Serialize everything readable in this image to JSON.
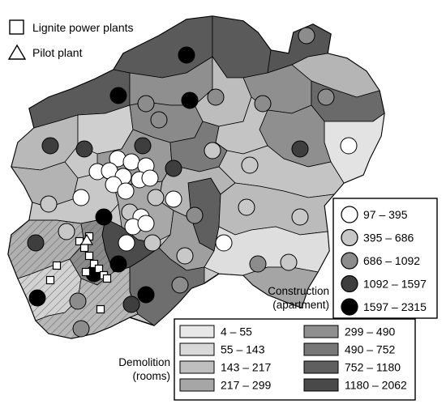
{
  "legend_markers": {
    "lignite": "Lignite power plants",
    "pilot": "Pilot plant"
  },
  "construction_legend": {
    "title_line1": "Construction",
    "title_line2": "(apartment)",
    "classes": [
      {
        "label": "97 – 395",
        "color": "#ffffff"
      },
      {
        "label": "395 – 686",
        "color": "#c8c8c8"
      },
      {
        "label": "686 – 1092",
        "color": "#8c8c8c"
      },
      {
        "label": "1092 – 1597",
        "color": "#3e3e3e"
      },
      {
        "label": "1597 – 2315",
        "color": "#000000"
      }
    ]
  },
  "demolition_legend": {
    "title_line1": "Demolition",
    "title_line2": "(rooms)",
    "classes": [
      {
        "label": "4 – 55",
        "color": "#e8e8e8"
      },
      {
        "label": "55 – 143",
        "color": "#d9d9d9"
      },
      {
        "label": "143 – 217",
        "color": "#bfbfbf"
      },
      {
        "label": "217 – 299",
        "color": "#a6a6a6"
      },
      {
        "label": "299 – 490",
        "color": "#8f8f8f"
      },
      {
        "label": "490 – 752",
        "color": "#777777"
      },
      {
        "label": "752 – 1180",
        "color": "#5f5f5f"
      },
      {
        "label": "1180 – 2062",
        "color": "#494949"
      }
    ]
  },
  "hatch_note": "lignite mining area shown hatched"
}
